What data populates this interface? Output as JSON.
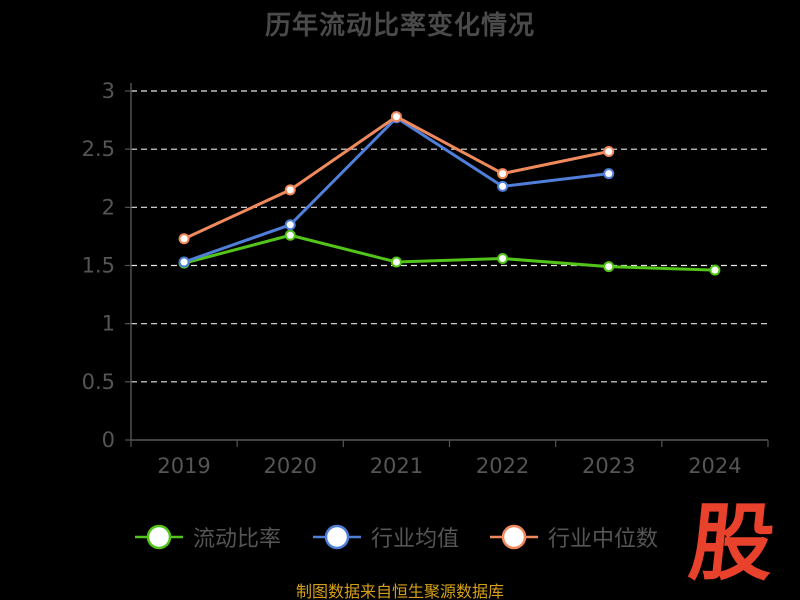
{
  "title": "历年流动比率变化情况",
  "source_note": "制图数据来自恒生聚源数据库",
  "brand_logo_text": "股",
  "colors": {
    "background": "#000000",
    "grid": "#e6e6e6",
    "axis": "#555555",
    "series": [
      "#52c41a",
      "#4f7fd9",
      "#f08a5d"
    ]
  },
  "chart_data": {
    "type": "line",
    "title": "历年流动比率变化情况",
    "xlabel": "",
    "ylabel": "",
    "categories": [
      "2019",
      "2020",
      "2021",
      "2022",
      "2023",
      "2024"
    ],
    "ylim": [
      0,
      3
    ],
    "yticks": [
      0,
      0.5,
      1,
      1.5,
      2,
      2.5,
      3
    ],
    "ytick_labels": [
      "0",
      "0.5",
      "1",
      "1.5",
      "2",
      "2.5",
      "3"
    ],
    "grid": true,
    "legend_position": "bottom",
    "series": [
      {
        "name": "流动比率",
        "values": [
          1.52,
          1.76,
          1.53,
          1.56,
          1.49,
          1.46
        ]
      },
      {
        "name": "行业均值",
        "values": [
          1.53,
          1.85,
          2.77,
          2.18,
          2.29,
          null
        ]
      },
      {
        "name": "行业中位数",
        "values": [
          1.73,
          2.15,
          2.78,
          2.29,
          2.48,
          null
        ]
      }
    ]
  }
}
